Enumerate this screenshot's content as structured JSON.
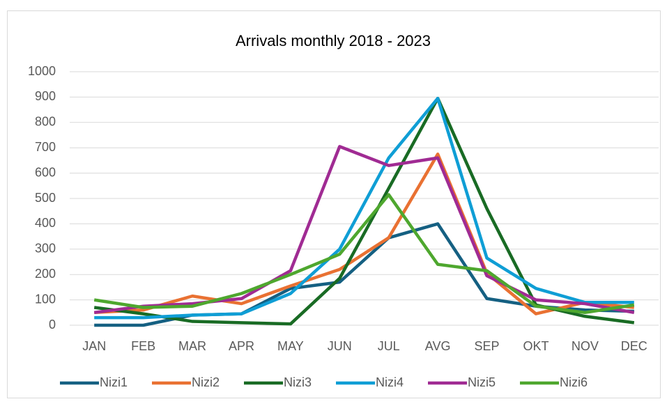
{
  "chart_data": {
    "type": "line",
    "title": "Arrivals monthly 2018 - 2023",
    "categories": [
      "JAN",
      "FEB",
      "MAR",
      "APR",
      "MAY",
      "JUN",
      "JUL",
      "AVG",
      "SEP",
      "OKT",
      "NOV",
      "DEC"
    ],
    "series": [
      {
        "name": "Nizi1",
        "color": "#156082",
        "values": [
          0,
          0,
          40,
          45,
          145,
          170,
          345,
          400,
          105,
          75,
          60,
          55
        ]
      },
      {
        "name": "Nizi2",
        "color": "#e97132",
        "values": [
          50,
          60,
          115,
          85,
          155,
          220,
          345,
          675,
          205,
          45,
          90,
          70
        ]
      },
      {
        "name": "Nizi3",
        "color": "#196b24",
        "values": [
          70,
          45,
          15,
          10,
          5,
          185,
          540,
          895,
          460,
          80,
          35,
          10
        ]
      },
      {
        "name": "Nizi4",
        "color": "#0f9ed5",
        "values": [
          30,
          30,
          40,
          45,
          125,
          300,
          660,
          895,
          265,
          145,
          90,
          90
        ]
      },
      {
        "name": "Nizi5",
        "color": "#a02b93",
        "values": [
          50,
          75,
          85,
          105,
          215,
          705,
          630,
          660,
          195,
          100,
          85,
          50
        ]
      },
      {
        "name": "Nizi6",
        "color": "#4ea72e",
        "values": [
          100,
          70,
          75,
          125,
          200,
          280,
          515,
          240,
          215,
          75,
          50,
          80
        ]
      }
    ],
    "ylim": [
      0,
      1000
    ],
    "yticks": [
      0,
      100,
      200,
      300,
      400,
      500,
      600,
      700,
      800,
      900,
      1000
    ],
    "grid": true,
    "legend": "bottom"
  }
}
